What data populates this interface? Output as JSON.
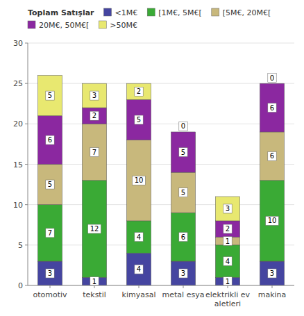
{
  "chart_data": {
    "type": "bar",
    "stacked": true,
    "categories": [
      "otomotiv",
      "tekstil",
      "kimyasal",
      "metal esya",
      "elektrikli ev\naletleri",
      "makina"
    ],
    "series": [
      {
        "name": "<1M€",
        "color": "#4545a0",
        "values": [
          3,
          1,
          4,
          3,
          1,
          3
        ]
      },
      {
        "name": "[1M€, 5M€[",
        "color": "#3aaa35",
        "values": [
          7,
          12,
          4,
          6,
          4,
          10
        ]
      },
      {
        "name": "[5M€, 20M€[",
        "color": "#c8b87c",
        "values": [
          5,
          7,
          10,
          5,
          1,
          6
        ]
      },
      {
        "name": "20M€, 50M€[",
        "color": "#8b28a0",
        "values": [
          6,
          2,
          5,
          5,
          2,
          6
        ]
      },
      {
        "name": ">50M€",
        "color": "#e8e870",
        "values": [
          5,
          3,
          2,
          0,
          3,
          0
        ]
      }
    ],
    "legend_title": "Toplam Satışlar",
    "ylim": [
      0,
      30
    ],
    "yticks": [
      0,
      5,
      10,
      15,
      20,
      25,
      30
    ],
    "grid": true,
    "legend": "top",
    "data_labels": true
  }
}
